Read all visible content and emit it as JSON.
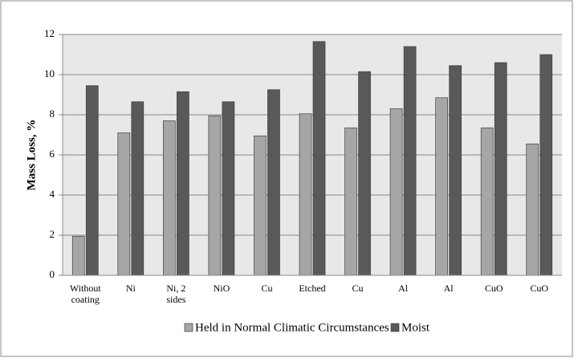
{
  "chart_data": {
    "type": "bar",
    "categories": [
      "Without coating",
      "Ni",
      "Ni, 2 sides",
      "NiO",
      "Cu",
      "Etched",
      "Cu",
      "Al",
      "Al",
      "CuO",
      "CuO"
    ],
    "series": [
      {
        "name": "Held in Normal Climatic Circumstances",
        "color": "#a6a6a6",
        "values": [
          1.95,
          7.1,
          7.7,
          7.95,
          6.95,
          8.05,
          7.35,
          8.3,
          8.85,
          7.35,
          6.55
        ]
      },
      {
        "name": "Moist",
        "color": "#595959",
        "values": [
          9.45,
          8.65,
          9.15,
          8.65,
          9.25,
          11.65,
          10.15,
          11.4,
          10.45,
          10.6,
          11.0
        ]
      }
    ],
    "y_label": "Mass Loss, %",
    "ylim": [
      0,
      12
    ],
    "yticks": [
      0,
      2,
      4,
      6,
      8,
      10,
      12
    ],
    "grid": true,
    "legend": "bottom"
  }
}
